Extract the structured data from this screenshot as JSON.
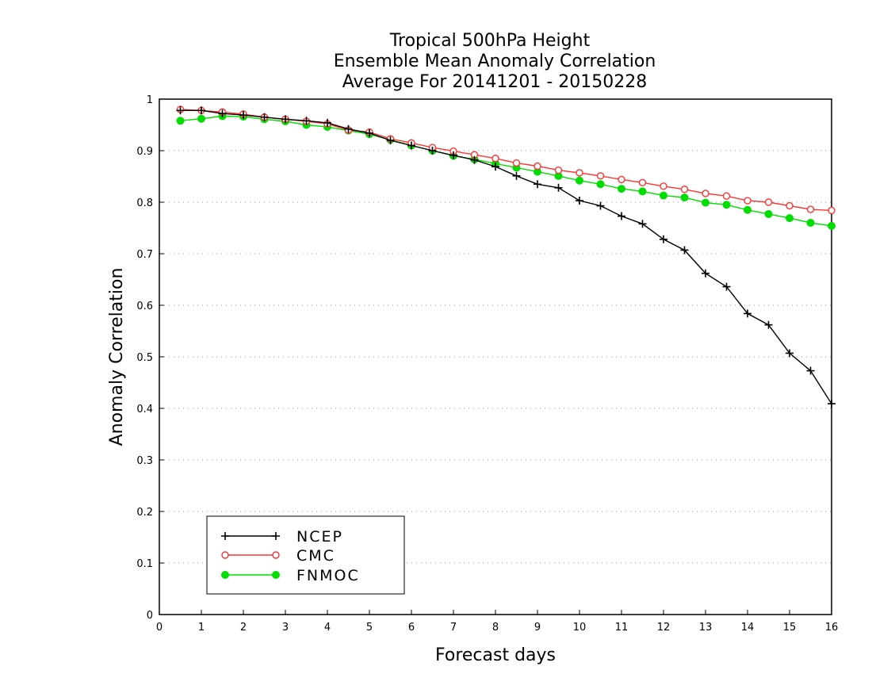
{
  "chart_data": {
    "type": "line",
    "title": [
      "Tropical 500hPa Height",
      "Ensemble Mean Anomaly Correlation",
      "Average For 20141201 - 20150228"
    ],
    "xlabel": "Forecast days",
    "ylabel": "Anomaly Correlation",
    "xlim": [
      0,
      16
    ],
    "ylim": [
      0,
      1
    ],
    "xticks": [
      "0",
      "1",
      "2",
      "3",
      "4",
      "5",
      "6",
      "7",
      "8",
      "9",
      "10",
      "11",
      "12",
      "13",
      "14",
      "15",
      "16"
    ],
    "yticks": [
      "0",
      "0.1",
      "0.2",
      "0.3",
      "0.4",
      "0.5",
      "0.6",
      "0.7",
      "0.8",
      "0.9",
      "1"
    ],
    "grid": "horizontal-dotted",
    "legend_position": "bottom-left",
    "x": [
      0.5,
      1.0,
      1.5,
      2.0,
      2.5,
      3.0,
      3.5,
      4.0,
      4.5,
      5.0,
      5.5,
      6.0,
      6.5,
      7.0,
      7.5,
      8.0,
      8.5,
      9.0,
      9.5,
      10.0,
      10.5,
      11.0,
      11.5,
      12.0,
      12.5,
      13.0,
      13.5,
      14.0,
      14.5,
      15.0,
      15.5,
      16.0
    ],
    "series": [
      {
        "name": "NCEP",
        "color": "#000000",
        "marker": "plus",
        "values": [
          0.978,
          0.978,
          0.972,
          0.969,
          0.965,
          0.961,
          0.958,
          0.954,
          0.942,
          0.934,
          0.92,
          0.91,
          0.9,
          0.891,
          0.882,
          0.869,
          0.851,
          0.835,
          0.828,
          0.803,
          0.793,
          0.773,
          0.758,
          0.728,
          0.707,
          0.662,
          0.636,
          0.584,
          0.562,
          0.507,
          0.473,
          0.409
        ]
      },
      {
        "name": "CMC",
        "color": "#ff3333",
        "marker": "open-circle",
        "values": [
          0.98,
          0.978,
          0.975,
          0.971,
          0.965,
          0.961,
          0.957,
          0.952,
          0.94,
          0.936,
          0.923,
          0.915,
          0.906,
          0.899,
          0.892,
          0.885,
          0.876,
          0.87,
          0.862,
          0.857,
          0.851,
          0.844,
          0.838,
          0.831,
          0.825,
          0.817,
          0.812,
          0.803,
          0.8,
          0.793,
          0.786,
          0.784
        ]
      },
      {
        "name": "FNMOC",
        "color": "#00dd00",
        "marker": "filled-circle",
        "values": [
          0.958,
          0.962,
          0.967,
          0.966,
          0.961,
          0.957,
          0.95,
          0.946,
          0.939,
          0.932,
          0.921,
          0.91,
          0.9,
          0.89,
          0.883,
          0.875,
          0.867,
          0.859,
          0.851,
          0.842,
          0.835,
          0.826,
          0.821,
          0.813,
          0.809,
          0.799,
          0.795,
          0.785,
          0.777,
          0.769,
          0.76,
          0.754
        ]
      }
    ]
  }
}
